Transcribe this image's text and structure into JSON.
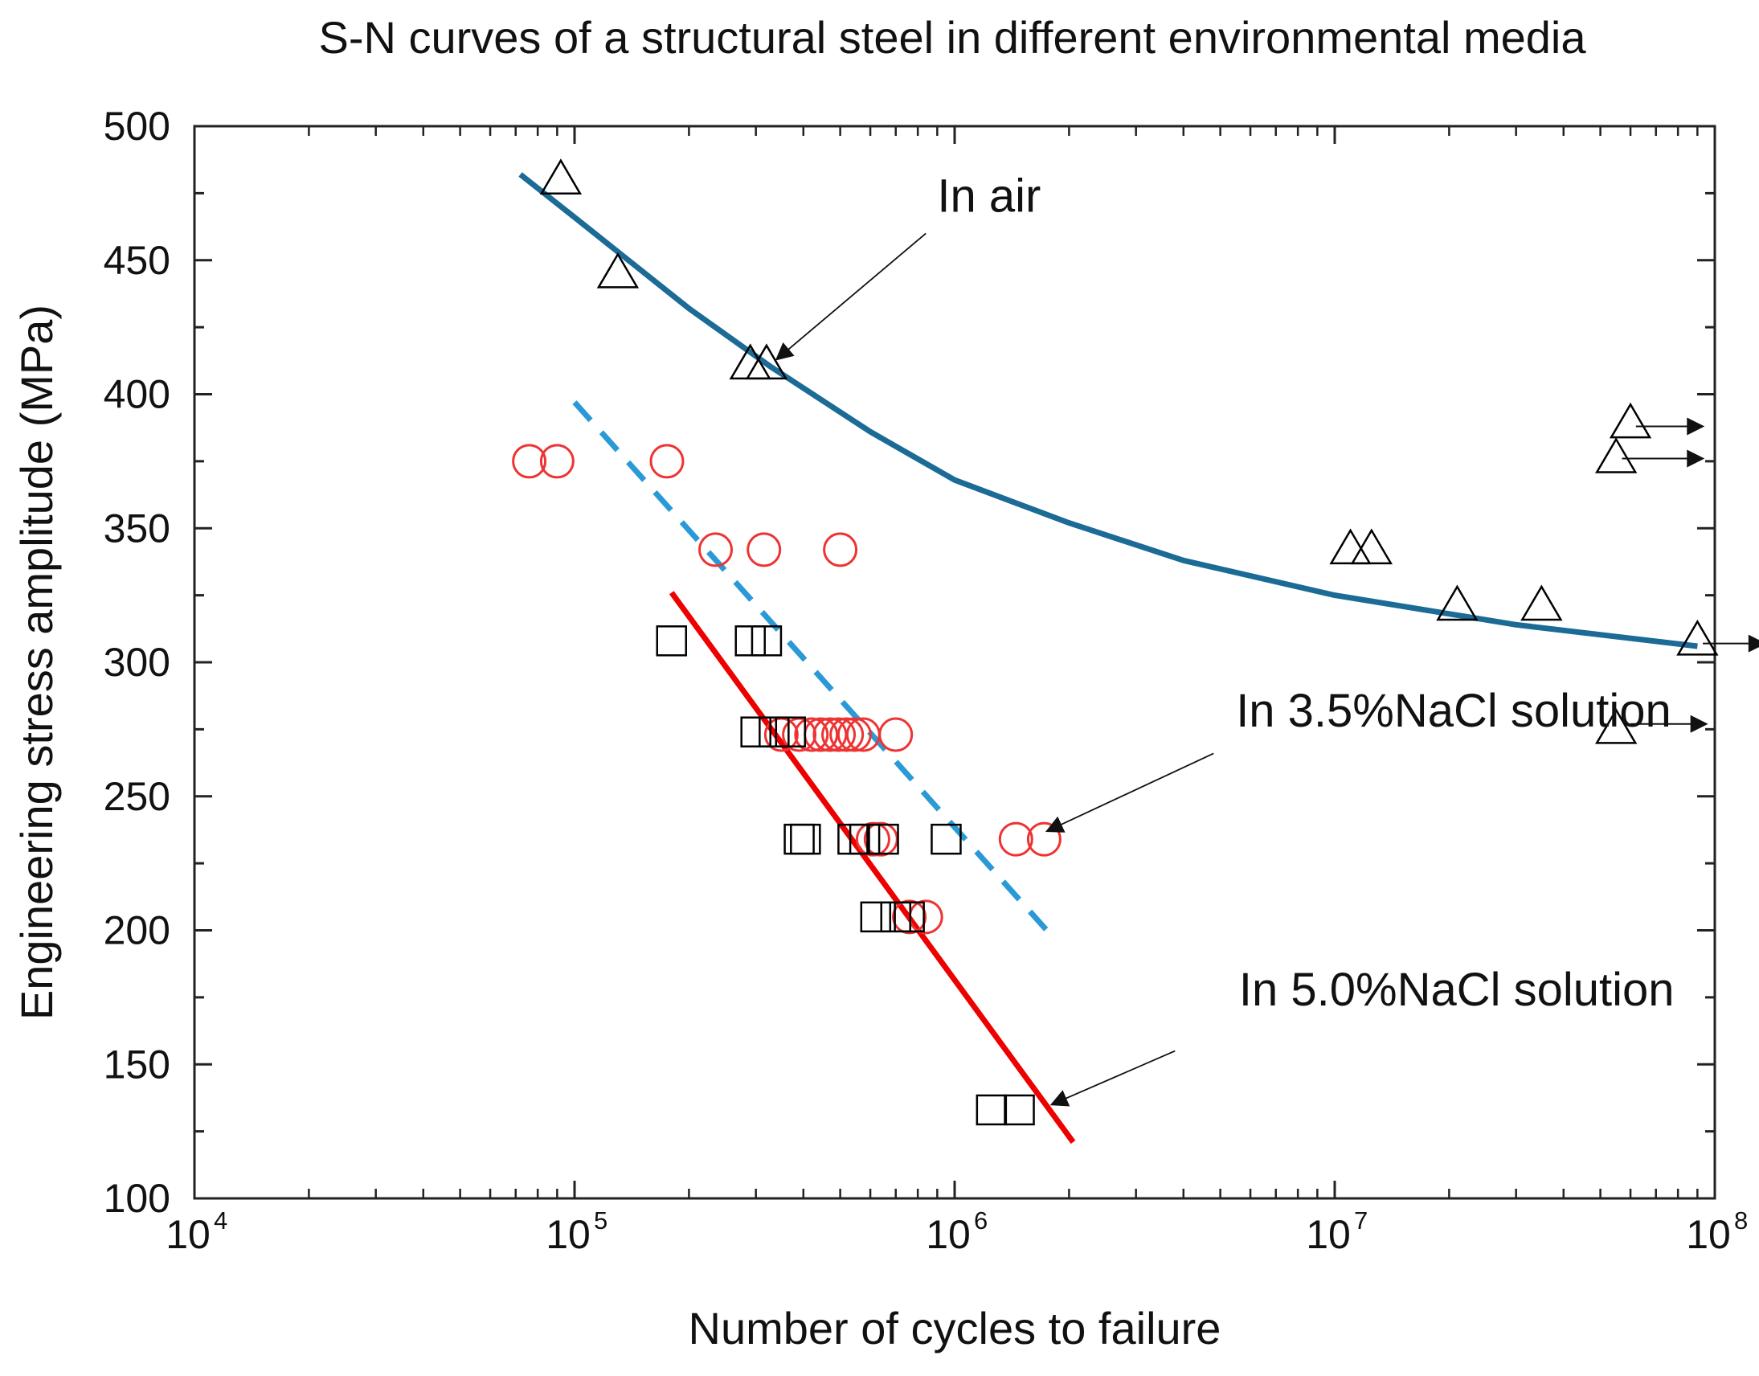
{
  "chart_data": {
    "type": "scatter",
    "title": "S-N curves of a structural steel in different environmental media",
    "xlabel": "Number of cycles to failure",
    "ylabel": "Engineering stress amplitude (MPa)",
    "x_scale": "log",
    "xlim": [
      10000,
      100000000
    ],
    "ylim": [
      100,
      500
    ],
    "grid": false,
    "x_ticks": [
      {
        "base": "10",
        "exp": "4",
        "value": 10000
      },
      {
        "base": "10",
        "exp": "5",
        "value": 100000
      },
      {
        "base": "10",
        "exp": "6",
        "value": 1000000
      },
      {
        "base": "10",
        "exp": "7",
        "value": 10000000
      },
      {
        "base": "10",
        "exp": "8",
        "value": 100000000
      }
    ],
    "y_ticks": [
      "100",
      "150",
      "200",
      "250",
      "300",
      "350",
      "400",
      "450",
      "500"
    ],
    "series": [
      {
        "marker": "triangle",
        "color": "#000000",
        "points": [
          [
            92000,
            480
          ],
          [
            130000,
            445
          ],
          [
            290000,
            411
          ],
          [
            320000,
            411
          ],
          [
            11000000,
            342
          ],
          [
            12500000,
            342
          ],
          [
            21000000,
            321
          ],
          [
            35000000,
            321
          ],
          [
            60000000,
            389
          ],
          [
            55000000,
            376
          ],
          [
            90000000,
            308
          ],
          [
            55000000,
            275
          ]
        ],
        "runouts": [
          {
            "from": [
              62000000,
              388
            ],
            "to": [
              93000000,
              388
            ]
          },
          {
            "from": [
              57000000,
              376
            ],
            "to": [
              93000000,
              376
            ]
          },
          {
            "from": [
              93000000,
              307
            ],
            "to": [
              135000000,
              307
            ]
          },
          {
            "from": [
              60000000,
              277
            ],
            "to": [
              95000000,
              277
            ]
          }
        ]
      },
      {
        "marker": "circle",
        "color": "#ee3333",
        "points": [
          [
            76000,
            375
          ],
          [
            90000,
            375
          ],
          [
            175000,
            375
          ],
          [
            235000,
            342
          ],
          [
            315000,
            342
          ],
          [
            500000,
            342
          ],
          [
            350000,
            273
          ],
          [
            390000,
            273
          ],
          [
            420000,
            273
          ],
          [
            445000,
            273
          ],
          [
            470000,
            273
          ],
          [
            495000,
            273
          ],
          [
            520000,
            273
          ],
          [
            545000,
            273
          ],
          [
            575000,
            273
          ],
          [
            700000,
            273
          ],
          [
            610000,
            234
          ],
          [
            640000,
            234
          ],
          [
            1450000,
            234
          ],
          [
            1720000,
            234
          ],
          [
            760000,
            205
          ],
          [
            840000,
            205
          ]
        ]
      },
      {
        "marker": "square",
        "color": "#000000",
        "points": [
          [
            180000,
            308
          ],
          [
            290000,
            308
          ],
          [
            320000,
            308
          ],
          [
            300000,
            274
          ],
          [
            335000,
            274
          ],
          [
            370000,
            274
          ],
          [
            390000,
            234
          ],
          [
            405000,
            234
          ],
          [
            540000,
            234
          ],
          [
            580000,
            234
          ],
          [
            650000,
            234
          ],
          [
            950000,
            234
          ],
          [
            620000,
            205
          ],
          [
            700000,
            205
          ],
          [
            760000,
            205
          ],
          [
            1250000,
            133
          ],
          [
            1480000,
            133
          ]
        ]
      }
    ],
    "fit_lines": [
      {
        "style": "solid",
        "color": "#1b6b96",
        "points": [
          [
            72000,
            482
          ],
          [
            100000,
            466
          ],
          [
            200000,
            432
          ],
          [
            330000,
            410
          ],
          [
            600000,
            386
          ],
          [
            1000000,
            368
          ],
          [
            2000000,
            352
          ],
          [
            4000000,
            338
          ],
          [
            10000000,
            325
          ],
          [
            30000000,
            314
          ],
          [
            90000000,
            306
          ]
        ]
      },
      {
        "style": "dashed",
        "color": "#2a9ad6",
        "points": [
          [
            100000,
            397
          ],
          [
            1800000,
            198
          ]
        ]
      },
      {
        "style": "solid",
        "color": "#ee0000",
        "points": [
          [
            180000,
            326
          ],
          [
            2050000,
            121
          ]
        ]
      }
    ],
    "annotations": [
      {
        "text": "In air",
        "anchor_data": [
          900000,
          468
        ],
        "arrow_from": [
          840000,
          460
        ],
        "arrow_to": [
          340000,
          413
        ]
      },
      {
        "text": "In 3.5%NaCl solution",
        "anchor_data": [
          5500000,
          276
        ],
        "arrow_from": [
          4800000,
          266
        ],
        "arrow_to": [
          1750000,
          237
        ]
      },
      {
        "text": "In 5.0%NaCl solution",
        "anchor_data": [
          5600000,
          172
        ],
        "arrow_from": [
          3800000,
          155
        ],
        "arrow_to": [
          1800000,
          135
        ]
      }
    ]
  }
}
